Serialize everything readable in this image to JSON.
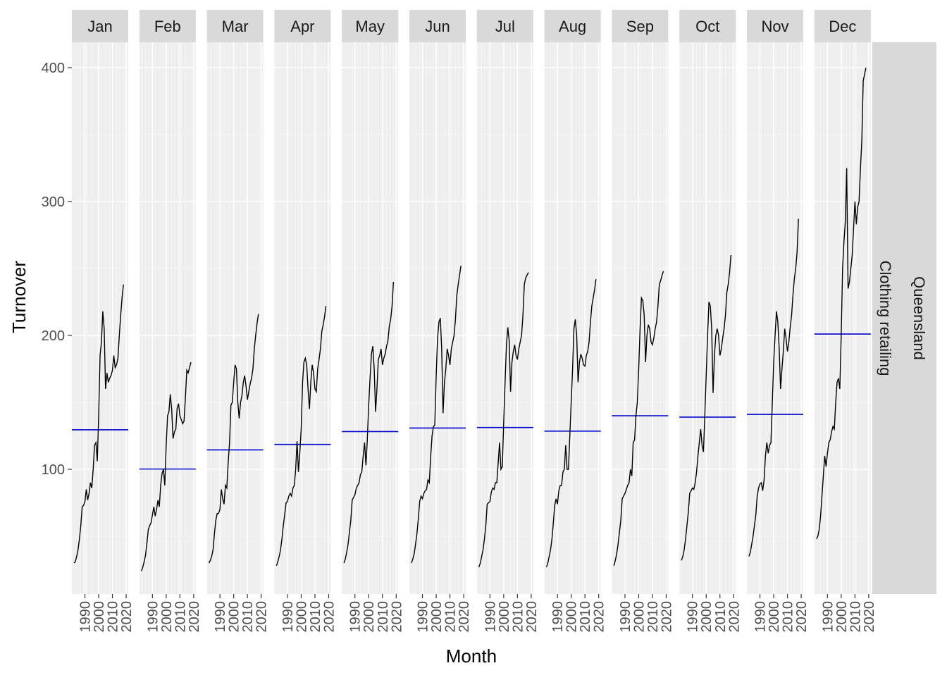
{
  "chart_data": {
    "type": "line",
    "title": "",
    "xlabel": "Month",
    "ylabel": "Turnover",
    "ylim": [
      0,
      420
    ],
    "y_ticks": [
      100,
      200,
      300,
      400
    ],
    "x_ticks": [
      1990,
      2000,
      2010,
      2020
    ],
    "x_tick_labels": [
      "1990",
      "2000",
      "2010",
      "2020"
    ],
    "xlim": [
      1980.5,
      2021.5
    ],
    "grid": true,
    "legend": "none",
    "strip_row": [
      "Queensland",
      "Clothing retailing"
    ],
    "colors": {
      "series": "#000000",
      "mean_line": "#0000cd",
      "panel_bg": "#ebebeb",
      "strip_bg": "#d9d9d9"
    },
    "x_years": [
      1982,
      1983,
      1984,
      1985,
      1986,
      1987,
      1988,
      1989,
      1990,
      1991,
      1992,
      1993,
      1994,
      1995,
      1996,
      1997,
      1998,
      1999,
      2000,
      2001,
      2002,
      2003,
      2004,
      2005,
      2006,
      2007,
      2008,
      2009,
      2010,
      2011,
      2012,
      2013,
      2014,
      2015,
      2016,
      2017,
      2018
    ],
    "panels": [
      {
        "month": "Jan",
        "mean": 129.5,
        "values": [
          30,
          31,
          35,
          40,
          48,
          58,
          72,
          73,
          76,
          85,
          77,
          82,
          90,
          86,
          100,
          118,
          120,
          106,
          140,
          185,
          195,
          218,
          205,
          160,
          172,
          165,
          168,
          170,
          174,
          185,
          176,
          178,
          183,
          200,
          215,
          228,
          238
        ]
      },
      {
        "month": "Feb",
        "mean": 100.2,
        "values": [
          24,
          27,
          31,
          36,
          45,
          55,
          58,
          60,
          66,
          72,
          65,
          70,
          77,
          72,
          88,
          97,
          100,
          88,
          118,
          140,
          143,
          156,
          145,
          123,
          128,
          130,
          146,
          149,
          140,
          137,
          134,
          136,
          154,
          174,
          172,
          176,
          180
        ]
      },
      {
        "month": "Mar",
        "mean": 114.5,
        "values": [
          30,
          32,
          35,
          40,
          52,
          62,
          67,
          67,
          70,
          85,
          78,
          74,
          88,
          86,
          105,
          120,
          148,
          150,
          165,
          178,
          175,
          150,
          138,
          150,
          155,
          165,
          170,
          162,
          152,
          158,
          164,
          168,
          175,
          190,
          200,
          209,
          216
        ]
      },
      {
        "month": "Apr",
        "mean": 118.6,
        "values": [
          28,
          31,
          35,
          40,
          48,
          58,
          66,
          75,
          76,
          80,
          82,
          80,
          86,
          88,
          100,
          121,
          98,
          112,
          130,
          165,
          180,
          183,
          178,
          160,
          145,
          165,
          178,
          172,
          160,
          158,
          175,
          182,
          190,
          203,
          208,
          214,
          222
        ]
      },
      {
        "month": "May",
        "mean": 128.2,
        "values": [
          30,
          33,
          38,
          44,
          53,
          62,
          77,
          79,
          81,
          86,
          88,
          90,
          96,
          98,
          110,
          120,
          103,
          122,
          148,
          168,
          186,
          192,
          175,
          143,
          160,
          182,
          185,
          190,
          178,
          183,
          186,
          192,
          196,
          207,
          212,
          222,
          240
        ]
      },
      {
        "month": "Jun",
        "mean": 130.8,
        "values": [
          30,
          33,
          37,
          44,
          52,
          63,
          76,
          80,
          78,
          82,
          84,
          85,
          92,
          90,
          110,
          125,
          132,
          133,
          170,
          198,
          210,
          213,
          190,
          142,
          165,
          175,
          190,
          185,
          178,
          190,
          195,
          200,
          212,
          230,
          238,
          245,
          252
        ]
      },
      {
        "month": "Jul",
        "mean": 131.2,
        "values": [
          27,
          30,
          35,
          40,
          48,
          58,
          74,
          75,
          76,
          83,
          86,
          85,
          90,
          90,
          105,
          120,
          100,
          102,
          135,
          165,
          193,
          206,
          196,
          158,
          180,
          188,
          193,
          185,
          182,
          190,
          195,
          200,
          215,
          238,
          243,
          245,
          247
        ]
      },
      {
        "month": "Aug",
        "mean": 128.5,
        "values": [
          27,
          30,
          35,
          40,
          48,
          60,
          73,
          78,
          74,
          84,
          88,
          88,
          98,
          100,
          118,
          100,
          100,
          125,
          150,
          175,
          205,
          212,
          200,
          165,
          180,
          186,
          183,
          178,
          177,
          185,
          188,
          195,
          210,
          222,
          228,
          234,
          242
        ]
      },
      {
        "month": "Sep",
        "mean": 140.0,
        "values": [
          28,
          32,
          37,
          44,
          53,
          62,
          78,
          80,
          82,
          85,
          88,
          90,
          100,
          95,
          120,
          122,
          140,
          150,
          175,
          205,
          228,
          226,
          215,
          180,
          200,
          208,
          205,
          195,
          193,
          198,
          205,
          210,
          222,
          238,
          241,
          245,
          248
        ]
      },
      {
        "month": "Oct",
        "mean": 139.0,
        "values": [
          32,
          35,
          40,
          48,
          58,
          68,
          82,
          84,
          86,
          85,
          90,
          98,
          110,
          120,
          130,
          118,
          113,
          140,
          170,
          200,
          225,
          222,
          205,
          157,
          185,
          200,
          205,
          200,
          185,
          190,
          198,
          205,
          215,
          232,
          238,
          247,
          260
        ]
      },
      {
        "month": "Nov",
        "mean": 141.0,
        "values": [
          35,
          38,
          44,
          50,
          58,
          66,
          80,
          86,
          89,
          90,
          84,
          92,
          110,
          120,
          112,
          118,
          120,
          150,
          180,
          200,
          218,
          210,
          190,
          160,
          175,
          188,
          205,
          198,
          188,
          195,
          206,
          215,
          230,
          242,
          250,
          262,
          287
        ]
      },
      {
        "month": "Dec",
        "mean": 201.0,
        "values": [
          48,
          50,
          55,
          65,
          80,
          95,
          110,
          102,
          112,
          120,
          122,
          128,
          132,
          130,
          150,
          165,
          168,
          160,
          200,
          250,
          270,
          285,
          325,
          235,
          240,
          250,
          260,
          280,
          300,
          283,
          296,
          300,
          325,
          345,
          390,
          395,
          400
        ]
      }
    ]
  }
}
